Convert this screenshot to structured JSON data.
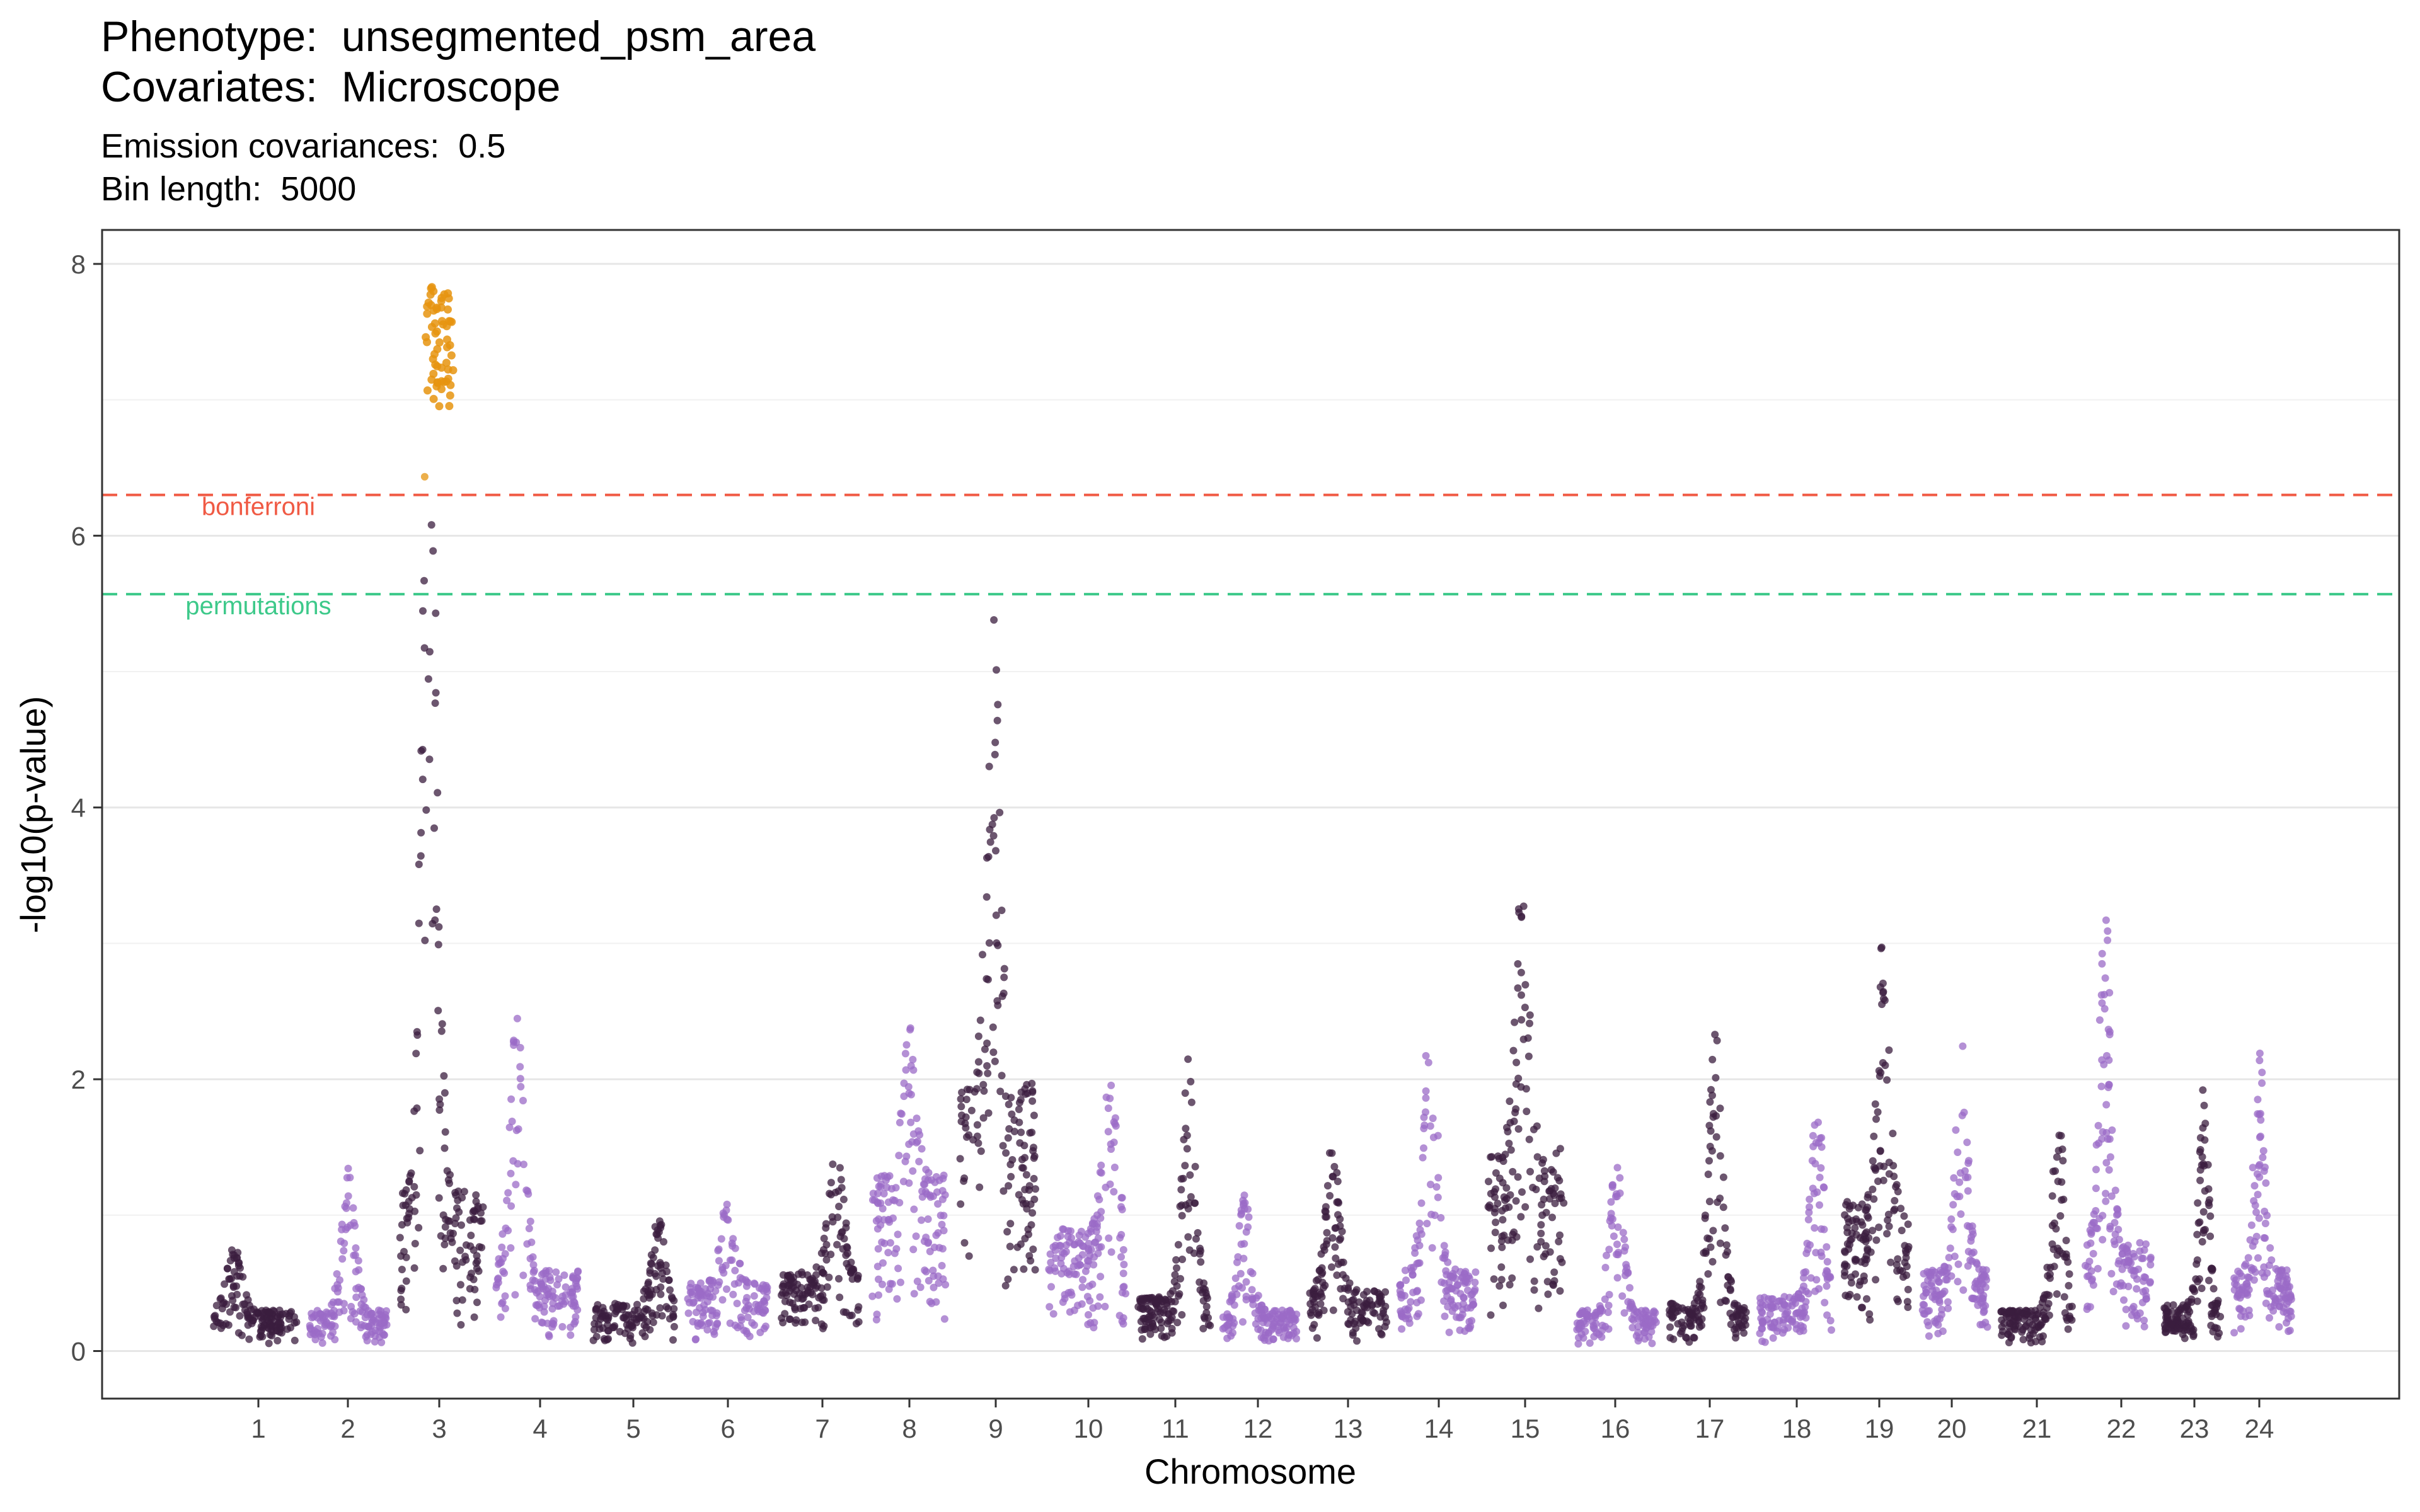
{
  "title": {
    "phenotype_label": "Phenotype:",
    "phenotype_value": "unsegmented_psm_area",
    "covariates_label": "Covariates:",
    "covariates_value": "Microscope"
  },
  "subtitle": {
    "emission_label": "Emission covariances:",
    "emission_value": "0.5",
    "bin_label": "Bin length:",
    "bin_value": "5000"
  },
  "chart_data": {
    "type": "scatter",
    "subtype": "manhattan",
    "xlabel": "Chromosome",
    "ylabel": "-log10(p-value)",
    "ylim": [
      -0.35,
      8.25
    ],
    "yticks": [
      0,
      2,
      4,
      6,
      8
    ],
    "grid": true,
    "thresholds": [
      {
        "name": "bonferroni",
        "value": 6.3,
        "color": "#f05a44"
      },
      {
        "name": "permutations",
        "value": 5.57,
        "color": "#3dc98a"
      }
    ],
    "colors": {
      "odd_chromosomes": "#3b1d3f",
      "even_chromosomes": "#9b6bc7",
      "significant": "#e6940f"
    },
    "chromosomes": [
      {
        "label": "1",
        "base": 0.3,
        "peak": 0.8,
        "peak_pos": 0.25
      },
      {
        "label": "2",
        "base": 0.3,
        "peak": 1.35,
        "peak_pos": 0.5
      },
      {
        "label": "3",
        "base": 1.2,
        "peak": 7.85,
        "peak_pos": 0.35
      },
      {
        "label": "4",
        "base": 0.6,
        "peak": 2.5,
        "peak_pos": 0.25
      },
      {
        "label": "5",
        "base": 0.35,
        "peak": 1.0,
        "peak_pos": 0.8
      },
      {
        "label": "6",
        "base": 0.5,
        "peak": 1.15,
        "peak_pos": 0.5
      },
      {
        "label": "7",
        "base": 0.6,
        "peak": 1.6,
        "peak_pos": 0.7
      },
      {
        "label": "8",
        "base": 1.3,
        "peak": 2.4,
        "peak_pos": 0.5
      },
      {
        "label": "9",
        "base": 2.0,
        "peak": 5.45,
        "peak_pos": 0.45
      },
      {
        "label": "10",
        "base": 0.9,
        "peak": 2.1,
        "peak_pos": 0.8
      },
      {
        "label": "11",
        "base": 0.4,
        "peak": 2.2,
        "peak_pos": 0.7
      },
      {
        "label": "12",
        "base": 0.3,
        "peak": 1.2,
        "peak_pos": 0.3
      },
      {
        "label": "13",
        "base": 0.45,
        "peak": 1.55,
        "peak_pos": 0.3
      },
      {
        "label": "14",
        "base": 0.6,
        "peak": 2.55,
        "peak_pos": 0.4
      },
      {
        "label": "15",
        "base": 1.5,
        "peak": 3.55,
        "peak_pos": 0.45
      },
      {
        "label": "16",
        "base": 0.3,
        "peak": 1.4,
        "peak_pos": 0.5
      },
      {
        "label": "17",
        "base": 0.35,
        "peak": 2.4,
        "peak_pos": 0.6
      },
      {
        "label": "18",
        "base": 0.4,
        "peak": 1.9,
        "peak_pos": 0.8
      },
      {
        "label": "19",
        "base": 1.1,
        "peak": 3.1,
        "peak_pos": 0.6
      },
      {
        "label": "20",
        "base": 0.6,
        "peak": 2.35,
        "peak_pos": 0.6
      },
      {
        "label": "21",
        "base": 0.3,
        "peak": 1.75,
        "peak_pos": 0.8
      },
      {
        "label": "22",
        "base": 0.8,
        "peak": 3.3,
        "peak_pos": 0.3
      },
      {
        "label": "23",
        "base": 0.35,
        "peak": 1.95,
        "peak_pos": 0.7
      },
      {
        "label": "24",
        "base": 0.6,
        "peak": 2.4,
        "peak_pos": 0.45
      }
    ]
  }
}
